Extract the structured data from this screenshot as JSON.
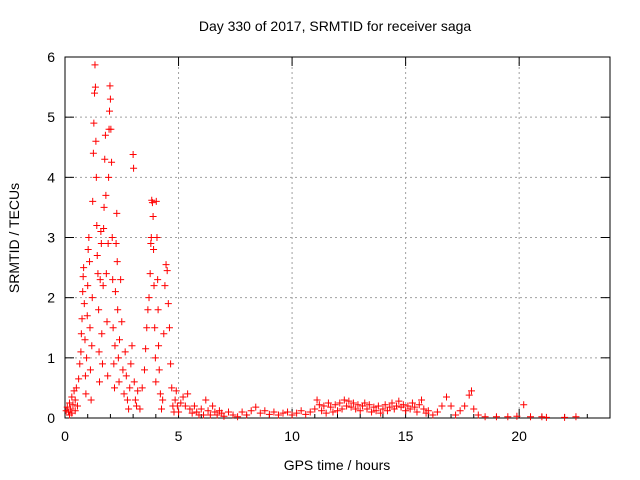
{
  "chart_data": {
    "type": "scatter",
    "title": "Day 330 of 2017, SRMTID for receiver saga",
    "xlabel": "GPS time / hours",
    "ylabel": "SRMTID / TECUs",
    "xlim": [
      0,
      24
    ],
    "ylim": [
      0,
      6
    ],
    "x_ticks": [
      0,
      5,
      10,
      15,
      20
    ],
    "y_ticks": [
      0,
      1,
      2,
      3,
      4,
      5,
      6
    ],
    "x_tick_labels": [
      "0",
      "5",
      "10",
      "15",
      "20"
    ],
    "y_tick_labels": [
      "0",
      "1",
      "2",
      "3",
      "4",
      "5",
      "6"
    ],
    "grid": true,
    "marker": "+",
    "color": "#ff0000",
    "series": [
      {
        "name": "SRMTID",
        "points": [
          [
            0.05,
            0.12
          ],
          [
            0.1,
            0.18
          ],
          [
            0.15,
            0.1
          ],
          [
            0.2,
            0.25
          ],
          [
            0.25,
            0.15
          ],
          [
            0.3,
            0.35
          ],
          [
            0.35,
            0.22
          ],
          [
            0.4,
            0.45
          ],
          [
            0.45,
            0.3
          ],
          [
            0.5,
            0.5
          ],
          [
            0.2,
            0.05
          ],
          [
            0.3,
            0.08
          ],
          [
            0.45,
            0.12
          ],
          [
            0.55,
            0.2
          ],
          [
            0.6,
            0.65
          ],
          [
            0.65,
            0.9
          ],
          [
            0.7,
            1.1
          ],
          [
            0.72,
            1.4
          ],
          [
            0.75,
            1.65
          ],
          [
            0.78,
            2.1
          ],
          [
            0.8,
            2.35
          ],
          [
            0.82,
            2.5
          ],
          [
            0.85,
            1.9
          ],
          [
            0.88,
            1.3
          ],
          [
            0.9,
            0.7
          ],
          [
            0.92,
            0.4
          ],
          [
            0.95,
            1.0
          ],
          [
            0.98,
            1.7
          ],
          [
            1.0,
            2.2
          ],
          [
            1.02,
            2.8
          ],
          [
            1.05,
            3.0
          ],
          [
            1.08,
            2.6
          ],
          [
            1.1,
            1.5
          ],
          [
            1.12,
            0.8
          ],
          [
            1.15,
            0.3
          ],
          [
            1.18,
            1.2
          ],
          [
            1.2,
            2.0
          ],
          [
            1.22,
            3.6
          ],
          [
            1.25,
            4.4
          ],
          [
            1.27,
            4.9
          ],
          [
            1.3,
            5.4
          ],
          [
            1.32,
            5.87
          ],
          [
            1.34,
            5.5
          ],
          [
            1.36,
            4.6
          ],
          [
            1.38,
            4.0
          ],
          [
            1.4,
            3.2
          ],
          [
            1.42,
            2.7
          ],
          [
            1.45,
            2.4
          ],
          [
            1.48,
            1.8
          ],
          [
            1.5,
            1.1
          ],
          [
            1.52,
            0.6
          ],
          [
            1.55,
            2.3
          ],
          [
            1.58,
            3.1
          ],
          [
            1.6,
            2.9
          ],
          [
            1.62,
            1.4
          ],
          [
            1.65,
            0.9
          ],
          [
            1.68,
            2.2
          ],
          [
            1.7,
            3.15
          ],
          [
            1.72,
            3.5
          ],
          [
            1.75,
            4.3
          ],
          [
            1.78,
            4.7
          ],
          [
            1.8,
            3.7
          ],
          [
            1.82,
            2.4
          ],
          [
            1.85,
            1.6
          ],
          [
            1.88,
            0.7
          ],
          [
            1.9,
            2.9
          ],
          [
            1.92,
            4.0
          ],
          [
            1.94,
            4.8
          ],
          [
            1.96,
            5.1
          ],
          [
            1.98,
            5.52
          ],
          [
            2.0,
            5.3
          ],
          [
            2.02,
            4.8
          ],
          [
            2.05,
            4.25
          ],
          [
            2.08,
            3.0
          ],
          [
            2.1,
            2.3
          ],
          [
            2.12,
            1.5
          ],
          [
            2.15,
            0.9
          ],
          [
            2.18,
            0.5
          ],
          [
            2.2,
            1.2
          ],
          [
            2.22,
            2.1
          ],
          [
            2.25,
            2.9
          ],
          [
            2.28,
            3.4
          ],
          [
            2.3,
            2.6
          ],
          [
            2.32,
            1.8
          ],
          [
            2.35,
            1.0
          ],
          [
            2.38,
            0.6
          ],
          [
            2.4,
            1.3
          ],
          [
            2.45,
            2.3
          ],
          [
            2.5,
            1.6
          ],
          [
            2.55,
            0.8
          ],
          [
            2.6,
            0.4
          ],
          [
            2.65,
            1.1
          ],
          [
            2.7,
            0.7
          ],
          [
            2.75,
            0.3
          ],
          [
            2.8,
            0.15
          ],
          [
            2.85,
            0.5
          ],
          [
            2.9,
            0.9
          ],
          [
            2.95,
            1.2
          ],
          [
            3.0,
            4.38
          ],
          [
            3.02,
            4.15
          ],
          [
            3.05,
            0.6
          ],
          [
            3.1,
            0.3
          ],
          [
            3.15,
            0.2
          ],
          [
            3.2,
            0.45
          ],
          [
            3.3,
            0.15
          ],
          [
            3.4,
            0.5
          ],
          [
            3.5,
            0.8
          ],
          [
            3.55,
            1.15
          ],
          [
            3.6,
            1.5
          ],
          [
            3.65,
            1.8
          ],
          [
            3.7,
            2.0
          ],
          [
            3.75,
            2.4
          ],
          [
            3.78,
            2.9
          ],
          [
            3.8,
            3.0
          ],
          [
            3.82,
            3.62
          ],
          [
            3.85,
            3.58
          ],
          [
            3.88,
            3.35
          ],
          [
            3.9,
            2.8
          ],
          [
            3.92,
            2.2
          ],
          [
            3.95,
            1.5
          ],
          [
            3.98,
            1.0
          ],
          [
            4.0,
            0.6
          ],
          [
            4.02,
            3.6
          ],
          [
            4.05,
            3.0
          ],
          [
            4.08,
            2.3
          ],
          [
            4.1,
            1.8
          ],
          [
            4.12,
            1.2
          ],
          [
            4.15,
            0.8
          ],
          [
            4.2,
            0.4
          ],
          [
            4.25,
            0.15
          ],
          [
            4.3,
            0.3
          ],
          [
            4.35,
            1.4
          ],
          [
            4.4,
            2.2
          ],
          [
            4.45,
            2.55
          ],
          [
            4.5,
            2.45
          ],
          [
            4.55,
            1.9
          ],
          [
            4.6,
            1.5
          ],
          [
            4.65,
            0.9
          ],
          [
            4.7,
            0.5
          ],
          [
            4.75,
            0.2
          ],
          [
            4.8,
            0.1
          ],
          [
            4.85,
            0.3
          ],
          [
            4.9,
            0.45
          ],
          [
            4.95,
            0.2
          ],
          [
            5.0,
            0.1
          ],
          [
            5.1,
            0.25
          ],
          [
            5.2,
            0.35
          ],
          [
            5.3,
            0.2
          ],
          [
            5.4,
            0.4
          ],
          [
            5.5,
            0.15
          ],
          [
            5.6,
            0.08
          ],
          [
            5.7,
            0.2
          ],
          [
            5.8,
            0.1
          ],
          [
            5.9,
            0.05
          ],
          [
            6.0,
            0.15
          ],
          [
            6.1,
            0.05
          ],
          [
            6.2,
            0.3
          ],
          [
            6.3,
            0.12
          ],
          [
            6.4,
            0.05
          ],
          [
            6.5,
            0.2
          ],
          [
            6.6,
            0.1
          ],
          [
            6.7,
            0.05
          ],
          [
            6.8,
            0.12
          ],
          [
            6.9,
            0.08
          ],
          [
            7.0,
            0.03
          ],
          [
            7.2,
            0.1
          ],
          [
            7.4,
            0.05
          ],
          [
            7.6,
            0.02
          ],
          [
            7.8,
            0.1
          ],
          [
            8.0,
            0.05
          ],
          [
            8.2,
            0.12
          ],
          [
            8.4,
            0.18
          ],
          [
            8.6,
            0.08
          ],
          [
            8.8,
            0.12
          ],
          [
            9.0,
            0.06
          ],
          [
            9.2,
            0.1
          ],
          [
            9.4,
            0.05
          ],
          [
            9.6,
            0.08
          ],
          [
            9.8,
            0.1
          ],
          [
            10.0,
            0.05
          ],
          [
            10.2,
            0.08
          ],
          [
            10.4,
            0.12
          ],
          [
            10.6,
            0.06
          ],
          [
            10.8,
            0.1
          ],
          [
            11.0,
            0.15
          ],
          [
            11.1,
            0.3
          ],
          [
            11.2,
            0.22
          ],
          [
            11.3,
            0.12
          ],
          [
            11.4,
            0.2
          ],
          [
            11.5,
            0.08
          ],
          [
            11.6,
            0.25
          ],
          [
            11.7,
            0.18
          ],
          [
            11.8,
            0.1
          ],
          [
            11.9,
            0.22
          ],
          [
            12.0,
            0.12
          ],
          [
            12.1,
            0.25
          ],
          [
            12.2,
            0.15
          ],
          [
            12.3,
            0.3
          ],
          [
            12.4,
            0.2
          ],
          [
            12.5,
            0.28
          ],
          [
            12.6,
            0.18
          ],
          [
            12.7,
            0.25
          ],
          [
            12.8,
            0.15
          ],
          [
            12.9,
            0.22
          ],
          [
            13.0,
            0.12
          ],
          [
            13.1,
            0.2
          ],
          [
            13.2,
            0.25
          ],
          [
            13.3,
            0.15
          ],
          [
            13.4,
            0.22
          ],
          [
            13.5,
            0.1
          ],
          [
            13.6,
            0.18
          ],
          [
            13.7,
            0.12
          ],
          [
            13.8,
            0.2
          ],
          [
            13.9,
            0.08
          ],
          [
            14.0,
            0.15
          ],
          [
            14.1,
            0.22
          ],
          [
            14.2,
            0.12
          ],
          [
            14.3,
            0.18
          ],
          [
            14.4,
            0.25
          ],
          [
            14.5,
            0.15
          ],
          [
            14.6,
            0.2
          ],
          [
            14.7,
            0.28
          ],
          [
            14.8,
            0.18
          ],
          [
            14.9,
            0.22
          ],
          [
            15.0,
            0.12
          ],
          [
            15.1,
            0.2
          ],
          [
            15.2,
            0.15
          ],
          [
            15.3,
            0.25
          ],
          [
            15.4,
            0.18
          ],
          [
            15.5,
            0.1
          ],
          [
            15.6,
            0.22
          ],
          [
            15.7,
            0.3
          ],
          [
            15.8,
            0.15
          ],
          [
            15.9,
            0.08
          ],
          [
            16.0,
            0.12
          ],
          [
            16.2,
            0.05
          ],
          [
            16.4,
            0.1
          ],
          [
            16.6,
            0.2
          ],
          [
            16.8,
            0.35
          ],
          [
            17.0,
            0.2
          ],
          [
            17.2,
            0.05
          ],
          [
            17.4,
            0.12
          ],
          [
            17.6,
            0.2
          ],
          [
            17.8,
            0.38
          ],
          [
            17.9,
            0.45
          ],
          [
            18.0,
            0.15
          ],
          [
            18.2,
            0.05
          ],
          [
            18.5,
            0.02
          ],
          [
            19.0,
            0.02
          ],
          [
            19.5,
            0.02
          ],
          [
            19.9,
            0.03
          ],
          [
            20.2,
            0.22
          ],
          [
            20.5,
            0.02
          ],
          [
            21.0,
            0.02
          ],
          [
            21.2,
            0.01
          ],
          [
            22.0,
            0.01
          ],
          [
            22.5,
            0.02
          ]
        ]
      }
    ]
  }
}
